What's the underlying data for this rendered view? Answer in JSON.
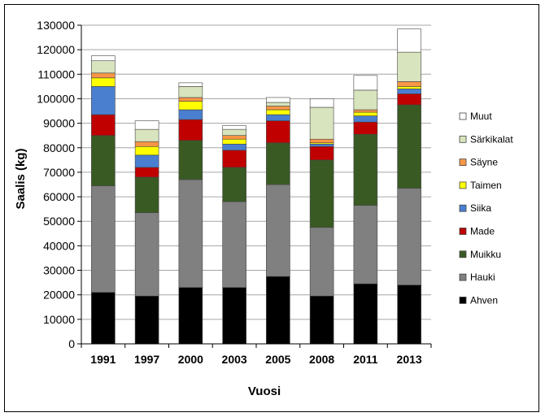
{
  "chart_data": {
    "type": "bar",
    "stacked": true,
    "xlabel": "Vuosi",
    "ylabel": "Saalis (kg)",
    "ylim": [
      0,
      130000
    ],
    "yticks": [
      "0",
      "10000",
      "20000",
      "30000",
      "40000",
      "50000",
      "60000",
      "70000",
      "80000",
      "90000",
      "100000",
      "110000",
      "120000",
      "130000"
    ],
    "grid": true,
    "legend_position": "right",
    "categories": [
      "1991",
      "1997",
      "2000",
      "2003",
      "2005",
      "2008",
      "2011",
      "2013"
    ],
    "series": [
      {
        "name": "Ahven",
        "color": "#000000",
        "values": [
          21000,
          19500,
          23000,
          23000,
          27500,
          19500,
          24500,
          24000
        ]
      },
      {
        "name": "Hauki",
        "color": "#808080",
        "values": [
          43500,
          34000,
          44000,
          35000,
          37500,
          28000,
          32000,
          39500
        ]
      },
      {
        "name": "Muikku",
        "color": "#3a5a24",
        "values": [
          20500,
          14500,
          16000,
          14000,
          17000,
          27500,
          29000,
          34000
        ]
      },
      {
        "name": "Made",
        "color": "#c00000",
        "values": [
          8500,
          4000,
          8500,
          7000,
          9000,
          5500,
          5000,
          4500
        ]
      },
      {
        "name": "Siika",
        "color": "#4a7fd0",
        "values": [
          11500,
          5000,
          4000,
          2500,
          2500,
          1000,
          2500,
          2000
        ]
      },
      {
        "name": "Taimen",
        "color": "#ffff00",
        "values": [
          3500,
          3500,
          3500,
          2000,
          2000,
          500,
          1500,
          1000
        ]
      },
      {
        "name": "Säyne",
        "color": "#f79646",
        "values": [
          2000,
          2000,
          1500,
          1500,
          1500,
          1500,
          1000,
          2000
        ]
      },
      {
        "name": "Särkikalat",
        "color": "#d7e4bd",
        "values": [
          5000,
          5000,
          4500,
          2500,
          1500,
          13000,
          8000,
          12000
        ]
      },
      {
        "name": "Muut",
        "color": "#ffffff",
        "values": [
          2000,
          3500,
          1500,
          1500,
          2000,
          3500,
          6000,
          9500
        ]
      }
    ]
  }
}
